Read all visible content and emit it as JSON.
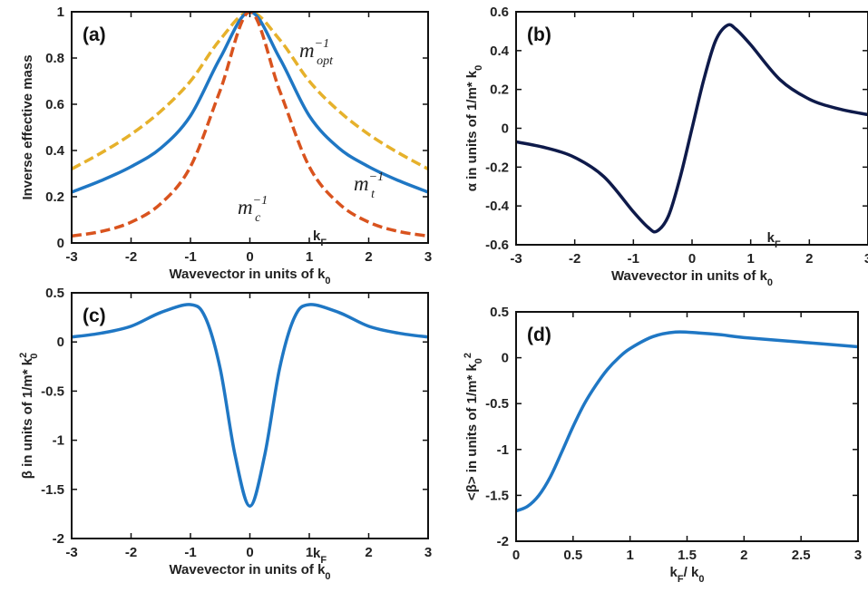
{
  "chart_data": [
    {
      "type": "line",
      "panel": "(a)",
      "ylabel": "Inverse effective mass",
      "xlabel": "Wavevector in units of k",
      "xlabel_sub": "0",
      "xlim": [
        -3,
        3
      ],
      "ylim": [
        0,
        1
      ],
      "xticks": [
        -3,
        -2,
        -1,
        0,
        1,
        2,
        3
      ],
      "yticks": [
        0,
        0.2,
        0.4,
        0.6,
        0.8,
        1
      ],
      "xtick_labels": [
        "-3",
        "-2",
        "-1",
        "0",
        "1",
        "2",
        "3"
      ],
      "ytick_labels": [
        "0",
        "0.2",
        "0.4",
        "0.6",
        "0.8",
        "1"
      ],
      "x": [
        -3,
        -2.5,
        -2,
        -1.5,
        -1,
        -0.5,
        0,
        0.5,
        1,
        1.5,
        2,
        2.5,
        3
      ],
      "series": [
        {
          "name": "m_opt^-1",
          "style": "dashed",
          "color": "#E6B12B",
          "values": [
            0.32,
            0.39,
            0.47,
            0.57,
            0.7,
            0.88,
            1.0,
            0.88,
            0.7,
            0.57,
            0.47,
            0.39,
            0.32
          ]
        },
        {
          "name": "m_t^-1",
          "style": "solid",
          "color": "#1F77C4",
          "values": [
            0.22,
            0.27,
            0.33,
            0.41,
            0.55,
            0.8,
            1.0,
            0.8,
            0.55,
            0.41,
            0.33,
            0.27,
            0.22
          ]
        },
        {
          "name": "m_c^-1",
          "style": "dashed",
          "color": "#D9531E",
          "values": [
            0.03,
            0.05,
            0.09,
            0.17,
            0.33,
            0.66,
            1.0,
            0.66,
            0.33,
            0.17,
            0.09,
            0.05,
            0.03
          ]
        }
      ],
      "labels": {
        "opt": {
          "base": "m",
          "sup": "−1",
          "sub": "opt"
        },
        "t": {
          "base": "m",
          "sup": "−1",
          "sub": "t"
        },
        "c": {
          "base": "m",
          "sup": "−1",
          "sub": "c"
        },
        "kf": {
          "base": "k",
          "sub": "F"
        }
      }
    },
    {
      "type": "line",
      "panel": "(b)",
      "ylabel": "α  in  units of 1/m* k",
      "ylabel_sub": "0",
      "xlabel": "Wavevector in units of k",
      "xlabel_sub": "0",
      "xlim": [
        -3,
        3
      ],
      "ylim": [
        -0.6,
        0.6
      ],
      "xticks": [
        -3,
        -2,
        -1,
        0,
        1,
        2,
        3
      ],
      "yticks": [
        -0.6,
        -0.4,
        -0.2,
        0,
        0.2,
        0.4,
        0.6
      ],
      "xtick_labels": [
        "-3",
        "-2",
        "-1",
        "0",
        "1",
        "2",
        "3"
      ],
      "ytick_labels": [
        "-0.6",
        "-0.4",
        "-0.2",
        "0",
        "0.2",
        "0.4",
        "0.6"
      ],
      "x": [
        -3,
        -2.5,
        -2,
        -1.5,
        -1,
        -0.75,
        -0.6,
        -0.4,
        -0.2,
        0,
        0.2,
        0.4,
        0.6,
        0.75,
        1,
        1.5,
        2,
        2.5,
        3
      ],
      "series": [
        {
          "name": "",
          "style": "solid",
          "color": "#0E1A4A",
          "values": [
            -0.07,
            -0.1,
            -0.15,
            -0.25,
            -0.43,
            -0.51,
            -0.53,
            -0.45,
            -0.25,
            0,
            0.25,
            0.45,
            0.53,
            0.51,
            0.43,
            0.25,
            0.15,
            0.1,
            0.07
          ]
        }
      ],
      "labels": {
        "kf": {
          "base": "k",
          "sub": "F"
        }
      }
    },
    {
      "type": "line",
      "panel": "(c)",
      "ylabel": "β in units of 1/m* k",
      "ylabel_sup": "2",
      "ylabel_sub": "0",
      "xlabel": "Wavevector in units of k",
      "xlabel_sub": "0",
      "xlim": [
        -3,
        3
      ],
      "ylim": [
        -2,
        0.5
      ],
      "xticks": [
        -3,
        -2,
        -1,
        0,
        1,
        2,
        3
      ],
      "yticks": [
        -2,
        -1.5,
        -1,
        -0.5,
        0,
        0.5
      ],
      "xtick_labels": [
        "-3",
        "-2",
        "-1",
        "0",
        "1",
        "2",
        "3"
      ],
      "ytick_labels": [
        "-2",
        "-1.5",
        "-1",
        "-0.5",
        "0",
        "0.5"
      ],
      "x": [
        -3,
        -2.5,
        -2,
        -1.5,
        -1,
        -0.75,
        -0.5,
        -0.25,
        0,
        0.25,
        0.5,
        0.75,
        1,
        1.5,
        2,
        2.5,
        3
      ],
      "series": [
        {
          "name": "",
          "style": "solid",
          "color": "#1F77C4",
          "values": [
            0.05,
            0.09,
            0.16,
            0.3,
            0.38,
            0.25,
            -0.27,
            -1.15,
            -1.67,
            -1.15,
            -0.27,
            0.25,
            0.38,
            0.3,
            0.16,
            0.09,
            0.05
          ]
        }
      ],
      "labels": {
        "kf": {
          "base": "k",
          "sub": "F"
        }
      }
    },
    {
      "type": "line",
      "panel": "(d)",
      "ylabel": "<β> in units of 1/m* k",
      "ylabel_sub": "0",
      "ylabel_sup": "2",
      "xlabel": "k",
      "xlabel_sub": "F",
      "xlabel_rest": "/ k",
      "xlabel_sub2": "0",
      "xlim": [
        0,
        3
      ],
      "ylim": [
        -2,
        0.5
      ],
      "xticks": [
        0,
        0.5,
        1,
        1.5,
        2,
        2.5,
        3
      ],
      "yticks": [
        -2,
        -1.5,
        -1,
        -0.5,
        0,
        0.5
      ],
      "xtick_labels": [
        "0",
        "0.5",
        "1",
        "1.5",
        "2",
        "2.5",
        "3"
      ],
      "ytick_labels": [
        "-2",
        "-1.5",
        "-1",
        "-0.5",
        "0",
        "0.5"
      ],
      "x": [
        0,
        0.1,
        0.2,
        0.3,
        0.4,
        0.5,
        0.6,
        0.7,
        0.8,
        0.9,
        1.0,
        1.2,
        1.4,
        1.6,
        1.8,
        2.0,
        2.5,
        3.0
      ],
      "series": [
        {
          "name": "",
          "style": "solid",
          "color": "#1F77C4",
          "values": [
            -1.67,
            -1.62,
            -1.5,
            -1.3,
            -1.03,
            -0.75,
            -0.5,
            -0.3,
            -0.13,
            0.0,
            0.1,
            0.23,
            0.28,
            0.27,
            0.25,
            0.22,
            0.17,
            0.12
          ]
        }
      ]
    }
  ]
}
